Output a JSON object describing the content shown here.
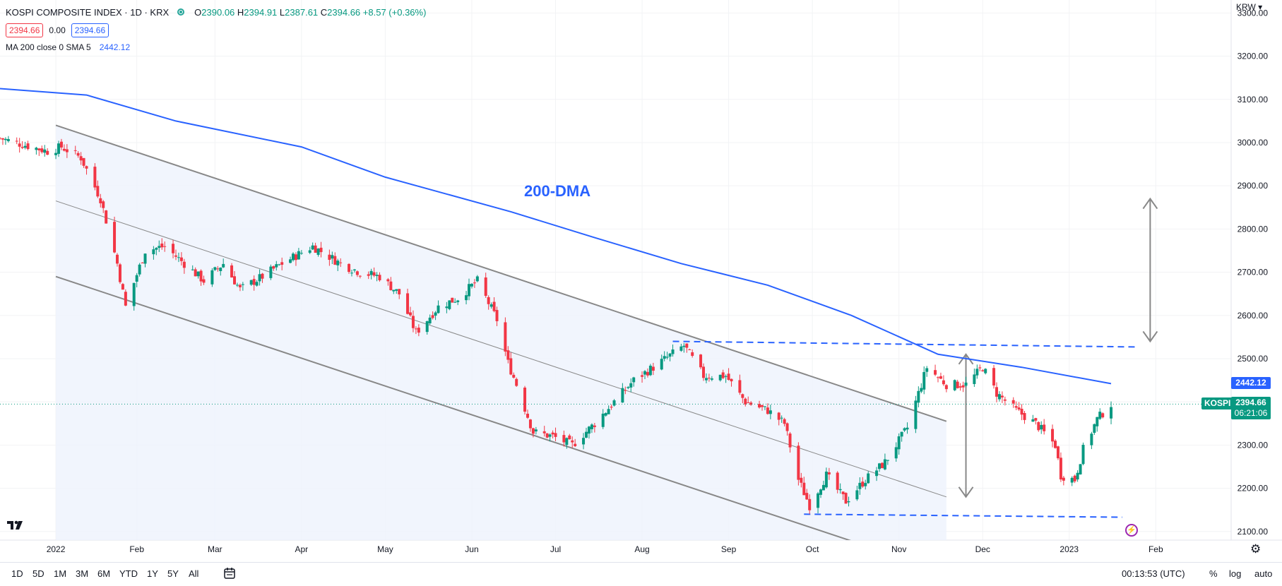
{
  "legend": {
    "title": "KOSPI COMPOSITE INDEX · 1D · KRX",
    "open_label": "O",
    "open": "2390.06",
    "high_label": "H",
    "high": "2394.91",
    "low_label": "L",
    "low": "2387.61",
    "close_label": "C",
    "close": "2394.66",
    "change": "+8.57 (+0.36%)",
    "bid": "2394.66",
    "spread": "0.00",
    "ask": "2394.66",
    "ma_label": "MA 200 close 0 SMA 5",
    "ma_value": "2442.12"
  },
  "annotation": "200-DMA",
  "currency": "KRW",
  "price_tags": {
    "ma": "2442.12",
    "symbol": "KOSPI",
    "price": "2394.66",
    "countdown": "06:21:06"
  },
  "toolbar": {
    "ranges": [
      "1D",
      "5D",
      "1M",
      "3M",
      "6M",
      "YTD",
      "1Y",
      "5Y",
      "All"
    ],
    "time": "00:13:53 (UTC)",
    "percent": "%",
    "log": "log",
    "auto": "auto"
  },
  "colors": {
    "up": "#089981",
    "down": "#f23645",
    "ma": "#2962ff",
    "channel": "#888888",
    "channel_fill": "#eef2fc"
  },
  "icons": [
    "tradingview-logo-icon",
    "lightning-icon",
    "gear-icon",
    "calendar-range-icon",
    "chevron-down-icon"
  ],
  "chart_data": {
    "type": "candlestick",
    "title": "KOSPI COMPOSITE INDEX · 1D · KRX",
    "y_range": [
      2080,
      3330
    ],
    "y_ticks": [
      2100,
      2200,
      2300,
      2400,
      2500,
      2600,
      2700,
      2800,
      2900,
      3000,
      3100,
      3200,
      3300
    ],
    "y_tick_labels": [
      "2100.00",
      "2200.00",
      "2300.00",
      "2400.00",
      "2500.00",
      "2600.00",
      "2700.00",
      "2800.00",
      "2900.00",
      "3000.00",
      "3100.00",
      "3200.00",
      "3300.00"
    ],
    "x_labels": [
      {
        "date": "2022-01-03",
        "label": "2022"
      },
      {
        "date": "2022-02-01",
        "label": "Feb"
      },
      {
        "date": "2022-03-01",
        "label": "Mar"
      },
      {
        "date": "2022-04-01",
        "label": "Apr"
      },
      {
        "date": "2022-05-01",
        "label": "May"
      },
      {
        "date": "2022-06-01",
        "label": "Jun"
      },
      {
        "date": "2022-07-01",
        "label": "Jul"
      },
      {
        "date": "2022-08-01",
        "label": "Aug"
      },
      {
        "date": "2022-09-01",
        "label": "Sep"
      },
      {
        "date": "2022-10-01",
        "label": "Oct"
      },
      {
        "date": "2022-11-01",
        "label": "Nov"
      },
      {
        "date": "2022-12-01",
        "label": "Dec"
      },
      {
        "date": "2023-01-01",
        "label": "2023"
      },
      {
        "date": "2023-02-01",
        "label": "Feb"
      }
    ],
    "x_range": [
      "2021-12-14",
      "2023-02-28"
    ],
    "close_path": [
      {
        "date": "2021-12-14",
        "close": 3010
      },
      {
        "date": "2021-12-31",
        "close": 2980
      },
      {
        "date": "2022-01-05",
        "close": 2990
      },
      {
        "date": "2022-01-12",
        "close": 2965
      },
      {
        "date": "2022-01-19",
        "close": 2870
      },
      {
        "date": "2022-01-25",
        "close": 2720
      },
      {
        "date": "2022-01-28",
        "close": 2620
      },
      {
        "date": "2022-02-04",
        "close": 2750
      },
      {
        "date": "2022-02-11",
        "close": 2760
      },
      {
        "date": "2022-02-18",
        "close": 2720
      },
      {
        "date": "2022-02-25",
        "close": 2680
      },
      {
        "date": "2022-03-04",
        "close": 2720
      },
      {
        "date": "2022-03-10",
        "close": 2660
      },
      {
        "date": "2022-03-18",
        "close": 2690
      },
      {
        "date": "2022-03-25",
        "close": 2720
      },
      {
        "date": "2022-04-05",
        "close": 2760
      },
      {
        "date": "2022-04-15",
        "close": 2720
      },
      {
        "date": "2022-04-22",
        "close": 2700
      },
      {
        "date": "2022-04-29",
        "close": 2690
      },
      {
        "date": "2022-05-06",
        "close": 2650
      },
      {
        "date": "2022-05-12",
        "close": 2560
      },
      {
        "date": "2022-05-20",
        "close": 2620
      },
      {
        "date": "2022-05-27",
        "close": 2640
      },
      {
        "date": "2022-06-03",
        "close": 2680
      },
      {
        "date": "2022-06-10",
        "close": 2590
      },
      {
        "date": "2022-06-14",
        "close": 2490
      },
      {
        "date": "2022-06-17",
        "close": 2440
      },
      {
        "date": "2022-06-23",
        "close": 2330
      },
      {
        "date": "2022-06-30",
        "close": 2320
      },
      {
        "date": "2022-07-07",
        "close": 2300
      },
      {
        "date": "2022-07-15",
        "close": 2350
      },
      {
        "date": "2022-07-22",
        "close": 2400
      },
      {
        "date": "2022-07-29",
        "close": 2450
      },
      {
        "date": "2022-08-05",
        "close": 2480
      },
      {
        "date": "2022-08-16",
        "close": 2530
      },
      {
        "date": "2022-08-23",
        "close": 2460
      },
      {
        "date": "2022-08-31",
        "close": 2460
      },
      {
        "date": "2022-09-07",
        "close": 2400
      },
      {
        "date": "2022-09-15",
        "close": 2380
      },
      {
        "date": "2022-09-21",
        "close": 2350
      },
      {
        "date": "2022-09-26",
        "close": 2220
      },
      {
        "date": "2022-09-30",
        "close": 2160
      },
      {
        "date": "2022-10-06",
        "close": 2230
      },
      {
        "date": "2022-10-13",
        "close": 2170
      },
      {
        "date": "2022-10-20",
        "close": 2220
      },
      {
        "date": "2022-10-27",
        "close": 2260
      },
      {
        "date": "2022-11-04",
        "close": 2340
      },
      {
        "date": "2022-11-11",
        "close": 2480
      },
      {
        "date": "2022-11-18",
        "close": 2440
      },
      {
        "date": "2022-11-25",
        "close": 2440
      },
      {
        "date": "2022-12-01",
        "close": 2480
      },
      {
        "date": "2022-12-06",
        "close": 2420
      },
      {
        "date": "2022-12-13",
        "close": 2380
      },
      {
        "date": "2022-12-20",
        "close": 2350
      },
      {
        "date": "2022-12-27",
        "close": 2300
      },
      {
        "date": "2022-12-29",
        "close": 2230
      },
      {
        "date": "2023-01-03",
        "close": 2220
      },
      {
        "date": "2023-01-06",
        "close": 2290
      },
      {
        "date": "2023-01-11",
        "close": 2360
      },
      {
        "date": "2023-01-16",
        "close": 2394.66
      }
    ],
    "ma200_path": [
      {
        "date": "2021-12-14",
        "value": 3125
      },
      {
        "date": "2022-01-14",
        "value": 3110
      },
      {
        "date": "2022-02-15",
        "value": 3050
      },
      {
        "date": "2022-04-01",
        "value": 2990
      },
      {
        "date": "2022-05-01",
        "value": 2920
      },
      {
        "date": "2022-06-15",
        "value": 2840
      },
      {
        "date": "2022-07-15",
        "value": 2780
      },
      {
        "date": "2022-08-15",
        "value": 2720
      },
      {
        "date": "2022-09-15",
        "value": 2670
      },
      {
        "date": "2022-10-15",
        "value": 2600
      },
      {
        "date": "2022-11-15",
        "value": 2510
      },
      {
        "date": "2022-12-15",
        "value": 2480
      },
      {
        "date": "2023-01-16",
        "value": 2442.12
      }
    ],
    "channel": {
      "start_date": "2022-01-03",
      "end_date": "2022-11-18",
      "upper": [
        3040,
        2355
      ],
      "middle": [
        2865,
        2180
      ],
      "lower": [
        2690,
        2005
      ]
    },
    "support_line": {
      "from": "2022-09-28",
      "to": "2023-01-20",
      "value": [
        2140,
        2133
      ]
    },
    "resistance_line": {
      "from": "2022-08-12",
      "to": "2023-01-25",
      "value": [
        2540,
        2527
      ]
    },
    "arrows": [
      {
        "date": "2022-11-25",
        "from": 2180,
        "to": 2510
      },
      {
        "date": "2023-01-30",
        "from": 2540,
        "to": 2870
      }
    ]
  }
}
